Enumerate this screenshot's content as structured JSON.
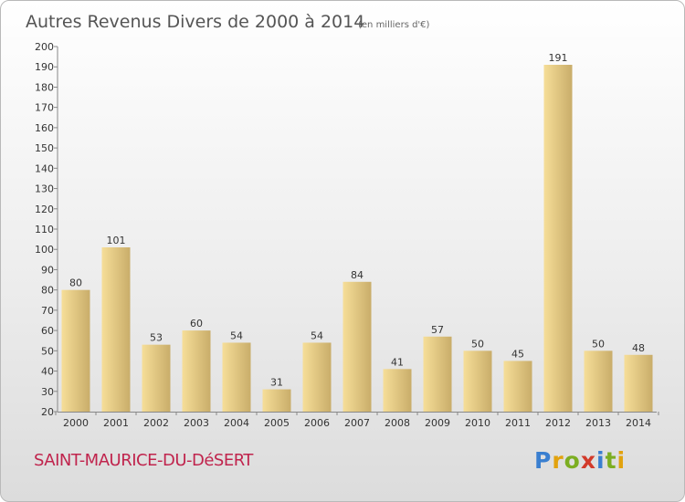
{
  "header": {
    "title": "Autres Revenus Divers de 2000 à 2014",
    "unit": "(en milliers d'€)"
  },
  "footer": {
    "location": "SAINT-MAURICE-DU-DéSERT",
    "brand": "Proxiti",
    "brand_letters": [
      {
        "ch": "P",
        "color": "#3a7fd0"
      },
      {
        "ch": "r",
        "color": "#e2a20e"
      },
      {
        "ch": "o",
        "color": "#7cae22"
      },
      {
        "ch": "x",
        "color": "#d23a2a"
      },
      {
        "ch": "i",
        "color": "#3a7fd0"
      },
      {
        "ch": "t",
        "color": "#7cae22"
      },
      {
        "ch": "i",
        "color": "#e2a20e"
      }
    ]
  },
  "chart_data": {
    "type": "bar",
    "title": "Autres Revenus Divers de 2000 à 2014",
    "subtitle": "(en milliers d'€)",
    "categories": [
      "2000",
      "2001",
      "2002",
      "2003",
      "2004",
      "2005",
      "2006",
      "2007",
      "2008",
      "2009",
      "2010",
      "2011",
      "2012",
      "2013",
      "2014"
    ],
    "values": [
      80,
      101,
      53,
      60,
      54,
      31,
      54,
      84,
      41,
      57,
      50,
      45,
      191,
      50,
      48
    ],
    "ylim": [
      20,
      200
    ],
    "yticks": [
      20,
      30,
      40,
      50,
      60,
      70,
      80,
      90,
      100,
      110,
      120,
      130,
      140,
      150,
      160,
      170,
      180,
      190,
      200
    ],
    "grid": false,
    "colors": {
      "bar_light": "#f6de98",
      "bar_dark": "#c9ad6a",
      "axis": "#888888"
    }
  }
}
